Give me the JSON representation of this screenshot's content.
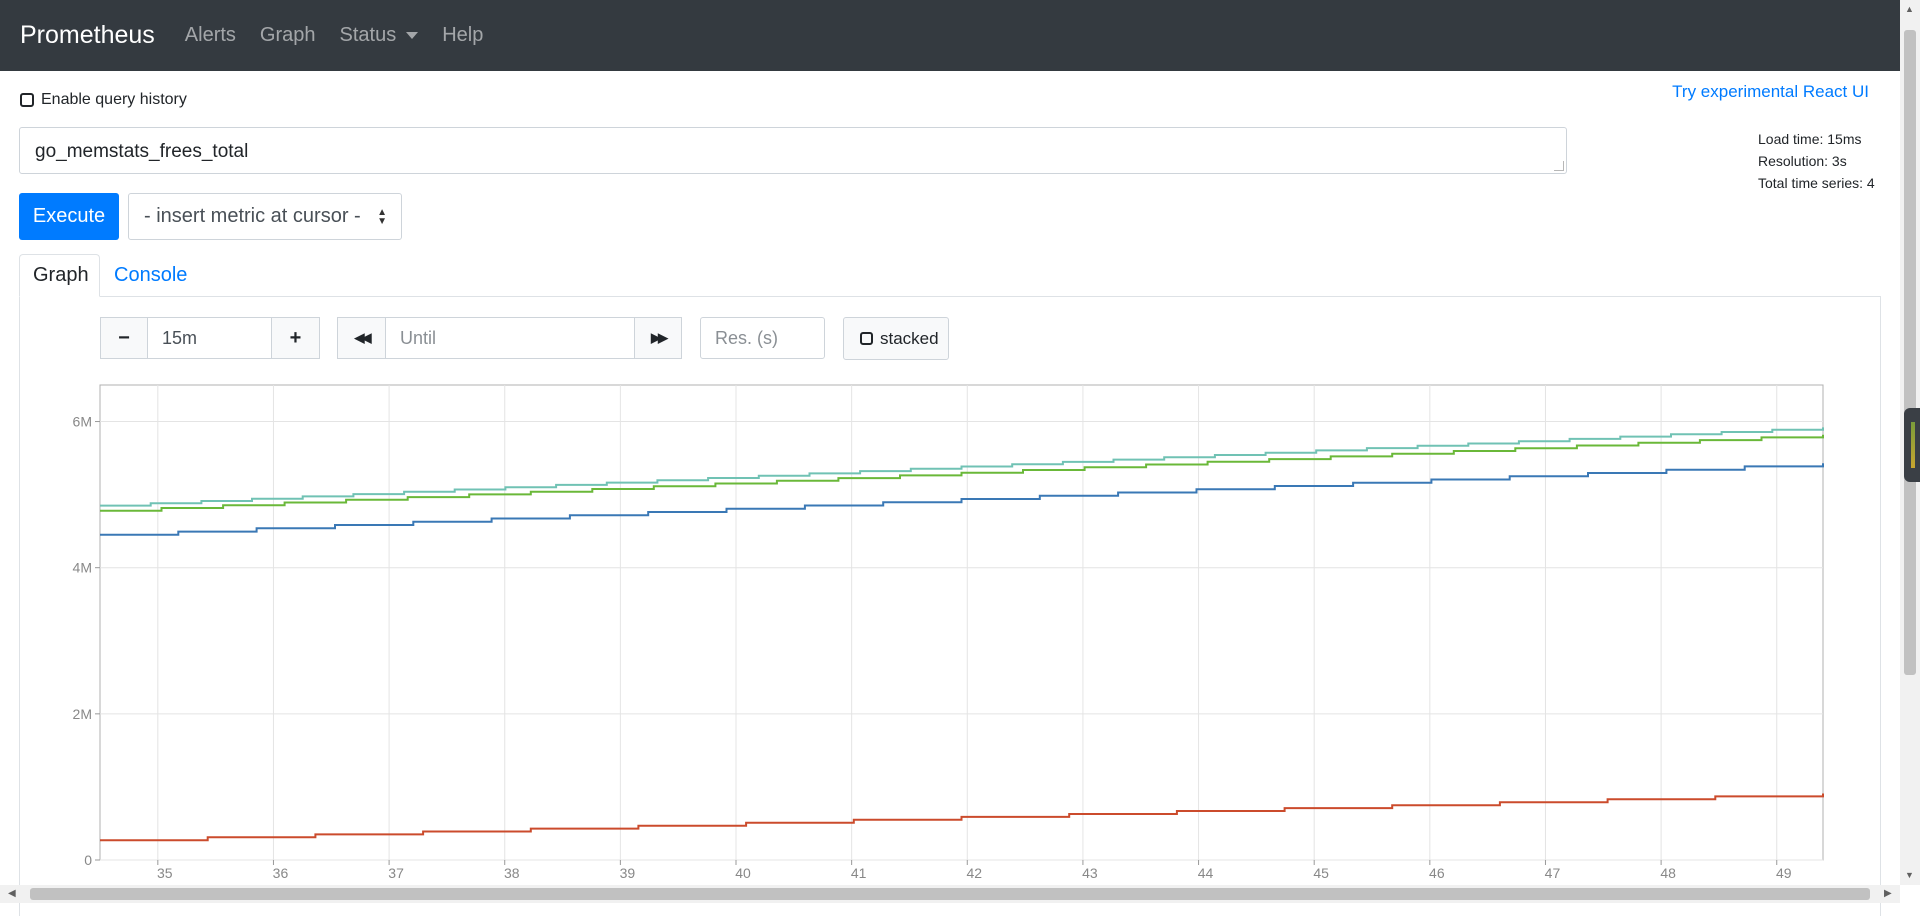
{
  "navbar": {
    "brand": "Prometheus",
    "links": [
      "Alerts",
      "Graph",
      "Status",
      "Help"
    ]
  },
  "query": {
    "history_label": "Enable query history",
    "history_checked": false,
    "react_link": "Try experimental React UI",
    "expression": "go_memstats_frees_total",
    "execute_label": "Execute",
    "metric_select": "- insert metric at cursor -"
  },
  "stats": {
    "load_time": "Load time: 15ms",
    "resolution": "Resolution: 3s",
    "total_series": "Total time series: 4"
  },
  "tabs": {
    "graph": "Graph",
    "console": "Console"
  },
  "controls": {
    "minus": "−",
    "range": "15m",
    "plus": "+",
    "back": "◀◀",
    "until_placeholder": "Until",
    "forward": "▶▶",
    "res_placeholder": "Res. (s)",
    "stacked_label": "stacked"
  },
  "chart_data": {
    "type": "line",
    "x": [
      34.5,
      49.4
    ],
    "xticks": [
      "35",
      "36",
      "37",
      "38",
      "39",
      "40",
      "41",
      "42",
      "43",
      "44",
      "45",
      "46",
      "47",
      "48",
      "49"
    ],
    "yticks": [
      "0",
      "2M",
      "4M",
      "6M"
    ],
    "ylim": [
      0,
      6500000
    ],
    "grid": true,
    "step": true,
    "series": [
      {
        "color": "#70c2b4",
        "start": 4850000,
        "end": 5920000
      },
      {
        "color": "#6ab839",
        "start": 4780000,
        "end": 5820000
      },
      {
        "color": "#3a78b5",
        "start": 4450000,
        "end": 5430000
      },
      {
        "color": "#cb4b2c",
        "start": 270000,
        "end": 910000
      }
    ]
  }
}
